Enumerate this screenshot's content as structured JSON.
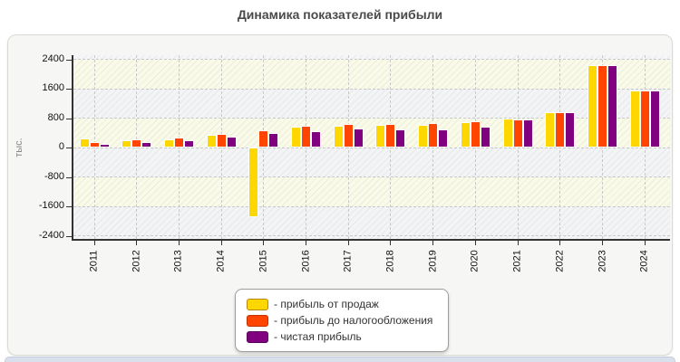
{
  "page": {
    "title": "Динамика показателей прибыли"
  },
  "axes": {
    "y_label": "тыс."
  },
  "legend": {
    "items": [
      {
        "label": "- прибыль от продаж",
        "color": "#ffd700",
        "border": "#b8860b"
      },
      {
        "label": "- прибыль до налогообложения",
        "color": "#ff4500",
        "border": "#c23000"
      },
      {
        "label": "- чистая прибыль",
        "color": "#800080",
        "border": "#560056"
      }
    ]
  },
  "chart_data": {
    "type": "bar",
    "title": "Динамика показателей прибыли",
    "xlabel": "",
    "ylabel": "тыс.",
    "ylim": [
      -2400,
      2400
    ],
    "yticks": [
      2400,
      1600,
      800,
      0,
      -800,
      -1600,
      -2400
    ],
    "grid": true,
    "legend_position": "bottom",
    "band_colors": [
      "#fafae9",
      "#f3f4f6"
    ],
    "categories": [
      "2011",
      "2012",
      "2013",
      "2014",
      "2015",
      "2016",
      "2017",
      "2018",
      "2019",
      "2020",
      "2021",
      "2022",
      "2023",
      "2024"
    ],
    "series": [
      {
        "name": "прибыль от продаж",
        "color": "#ffd700",
        "values": [
          240,
          200,
          230,
          350,
          -1900,
          560,
          590,
          610,
          610,
          690,
          780,
          950,
          2230,
          1540
        ]
      },
      {
        "name": "прибыль до налогообложения",
        "color": "#ff4500",
        "values": [
          150,
          210,
          270,
          370,
          480,
          580,
          640,
          640,
          660,
          710,
          760,
          950,
          2230,
          1540
        ]
      },
      {
        "name": "чистая прибыль",
        "color": "#800080",
        "values": [
          100,
          150,
          200,
          300,
          390,
          440,
          510,
          490,
          490,
          560,
          770,
          960,
          2230,
          1560
        ]
      }
    ]
  }
}
